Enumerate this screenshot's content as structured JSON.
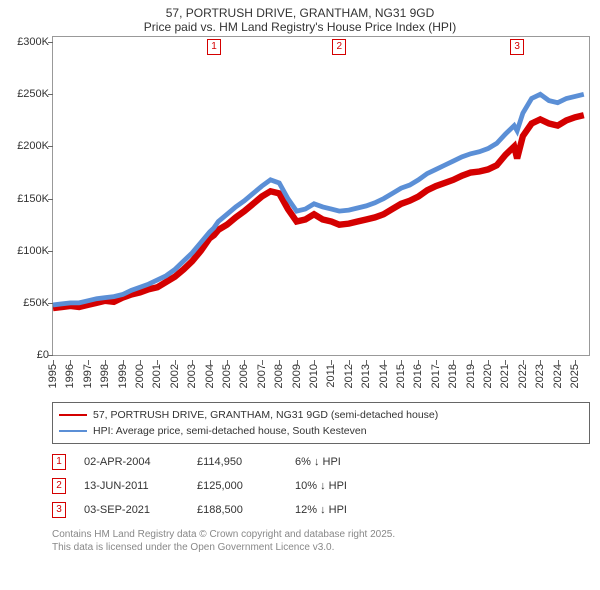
{
  "title_line1": "57, PORTRUSH DRIVE, GRANTHAM, NG31 9GD",
  "title_line2": "Price paid vs. HM Land Registry's House Price Index (HPI)",
  "chart": {
    "type": "line",
    "background_color": "#ffffff",
    "border_color": "#999999",
    "x_axis": {
      "min": 1995,
      "max": 2025.8,
      "ticks": [
        1995,
        1996,
        1997,
        1998,
        1999,
        2000,
        2001,
        2002,
        2003,
        2004,
        2005,
        2006,
        2007,
        2008,
        2009,
        2010,
        2011,
        2012,
        2013,
        2014,
        2015,
        2016,
        2017,
        2018,
        2019,
        2020,
        2021,
        2022,
        2023,
        2024,
        2025
      ],
      "label_fontsize": 11,
      "label_color": "#333333",
      "label_rotation": -90
    },
    "y_axis": {
      "min": 0,
      "max": 305000,
      "ticks": [
        {
          "v": 0,
          "label": "£0"
        },
        {
          "v": 50000,
          "label": "£50K"
        },
        {
          "v": 100000,
          "label": "£100K"
        },
        {
          "v": 150000,
          "label": "£150K"
        },
        {
          "v": 200000,
          "label": "£200K"
        },
        {
          "v": 250000,
          "label": "£250K"
        },
        {
          "v": 300000,
          "label": "£300K"
        }
      ],
      "label_fontsize": 11,
      "label_color": "#333333"
    },
    "series": [
      {
        "name": "price-paid",
        "label": "57, PORTRUSH DRIVE, GRANTHAM, NG31 9GD (semi-detached house)",
        "color": "#d40000",
        "line_width": 2,
        "data": [
          [
            1995.0,
            45000
          ],
          [
            1995.5,
            46000
          ],
          [
            1996.0,
            47000
          ],
          [
            1996.5,
            46000
          ],
          [
            1997.0,
            48000
          ],
          [
            1997.5,
            50000
          ],
          [
            1998.0,
            52000
          ],
          [
            1998.5,
            51000
          ],
          [
            1999.0,
            55000
          ],
          [
            1999.5,
            58000
          ],
          [
            2000.0,
            60000
          ],
          [
            2000.5,
            63000
          ],
          [
            2001.0,
            65000
          ],
          [
            2001.5,
            70000
          ],
          [
            2002.0,
            75000
          ],
          [
            2002.5,
            82000
          ],
          [
            2003.0,
            90000
          ],
          [
            2003.5,
            100000
          ],
          [
            2004.0,
            112000
          ],
          [
            2004.25,
            114950
          ],
          [
            2004.5,
            120000
          ],
          [
            2005.0,
            125000
          ],
          [
            2005.5,
            132000
          ],
          [
            2006.0,
            138000
          ],
          [
            2006.5,
            145000
          ],
          [
            2007.0,
            152000
          ],
          [
            2007.5,
            157000
          ],
          [
            2008.0,
            155000
          ],
          [
            2008.5,
            140000
          ],
          [
            2009.0,
            128000
          ],
          [
            2009.5,
            130000
          ],
          [
            2010.0,
            135000
          ],
          [
            2010.5,
            130000
          ],
          [
            2011.0,
            128000
          ],
          [
            2011.45,
            125000
          ],
          [
            2012.0,
            126000
          ],
          [
            2012.5,
            128000
          ],
          [
            2013.0,
            130000
          ],
          [
            2013.5,
            132000
          ],
          [
            2014.0,
            135000
          ],
          [
            2014.5,
            140000
          ],
          [
            2015.0,
            145000
          ],
          [
            2015.5,
            148000
          ],
          [
            2016.0,
            152000
          ],
          [
            2016.5,
            158000
          ],
          [
            2017.0,
            162000
          ],
          [
            2017.5,
            165000
          ],
          [
            2018.0,
            168000
          ],
          [
            2018.5,
            172000
          ],
          [
            2019.0,
            175000
          ],
          [
            2019.5,
            176000
          ],
          [
            2020.0,
            178000
          ],
          [
            2020.5,
            182000
          ],
          [
            2021.0,
            192000
          ],
          [
            2021.5,
            200000
          ],
          [
            2021.67,
            188500
          ],
          [
            2022.0,
            210000
          ],
          [
            2022.5,
            222000
          ],
          [
            2023.0,
            226000
          ],
          [
            2023.5,
            222000
          ],
          [
            2024.0,
            220000
          ],
          [
            2024.5,
            225000
          ],
          [
            2025.0,
            228000
          ],
          [
            2025.5,
            230000
          ]
        ]
      },
      {
        "name": "hpi",
        "label": "HPI: Average price, semi-detached house, South Kesteven",
        "color": "#5b8fd6",
        "line_width": 1.5,
        "data": [
          [
            1995.0,
            48000
          ],
          [
            1995.5,
            49000
          ],
          [
            1996.0,
            50000
          ],
          [
            1996.5,
            50000
          ],
          [
            1997.0,
            52000
          ],
          [
            1997.5,
            54000
          ],
          [
            1998.0,
            55000
          ],
          [
            1998.5,
            56000
          ],
          [
            1999.0,
            58000
          ],
          [
            1999.5,
            62000
          ],
          [
            2000.0,
            65000
          ],
          [
            2000.5,
            68000
          ],
          [
            2001.0,
            72000
          ],
          [
            2001.5,
            76000
          ],
          [
            2002.0,
            82000
          ],
          [
            2002.5,
            90000
          ],
          [
            2003.0,
            98000
          ],
          [
            2003.5,
            108000
          ],
          [
            2004.0,
            118000
          ],
          [
            2004.25,
            122000
          ],
          [
            2004.5,
            128000
          ],
          [
            2005.0,
            135000
          ],
          [
            2005.5,
            142000
          ],
          [
            2006.0,
            148000
          ],
          [
            2006.5,
            155000
          ],
          [
            2007.0,
            162000
          ],
          [
            2007.5,
            168000
          ],
          [
            2008.0,
            165000
          ],
          [
            2008.5,
            150000
          ],
          [
            2009.0,
            138000
          ],
          [
            2009.5,
            140000
          ],
          [
            2010.0,
            145000
          ],
          [
            2010.5,
            142000
          ],
          [
            2011.0,
            140000
          ],
          [
            2011.45,
            138000
          ],
          [
            2012.0,
            139000
          ],
          [
            2012.5,
            141000
          ],
          [
            2013.0,
            143000
          ],
          [
            2013.5,
            146000
          ],
          [
            2014.0,
            150000
          ],
          [
            2014.5,
            155000
          ],
          [
            2015.0,
            160000
          ],
          [
            2015.5,
            163000
          ],
          [
            2016.0,
            168000
          ],
          [
            2016.5,
            174000
          ],
          [
            2017.0,
            178000
          ],
          [
            2017.5,
            182000
          ],
          [
            2018.0,
            186000
          ],
          [
            2018.5,
            190000
          ],
          [
            2019.0,
            193000
          ],
          [
            2019.5,
            195000
          ],
          [
            2020.0,
            198000
          ],
          [
            2020.5,
            203000
          ],
          [
            2021.0,
            212000
          ],
          [
            2021.5,
            220000
          ],
          [
            2021.67,
            215000
          ],
          [
            2022.0,
            232000
          ],
          [
            2022.5,
            246000
          ],
          [
            2023.0,
            250000
          ],
          [
            2023.5,
            244000
          ],
          [
            2024.0,
            242000
          ],
          [
            2024.5,
            246000
          ],
          [
            2025.0,
            248000
          ],
          [
            2025.5,
            250000
          ]
        ]
      }
    ],
    "markers": [
      {
        "n": "1",
        "x": 2004.25,
        "color": "#d40000"
      },
      {
        "n": "2",
        "x": 2011.45,
        "color": "#d40000"
      },
      {
        "n": "3",
        "x": 2021.67,
        "color": "#d40000"
      }
    ]
  },
  "legend": {
    "border_color": "#666666",
    "fontsize": 10.5
  },
  "sales": [
    {
      "n": "1",
      "date": "02-APR-2004",
      "price": "£114,950",
      "pct": "6% ↓ HPI",
      "color": "#d40000"
    },
    {
      "n": "2",
      "date": "13-JUN-2011",
      "price": "£125,000",
      "pct": "10% ↓ HPI",
      "color": "#d40000"
    },
    {
      "n": "3",
      "date": "03-SEP-2021",
      "price": "£188,500",
      "pct": "12% ↓ HPI",
      "color": "#d40000"
    }
  ],
  "footer_line1": "Contains HM Land Registry data © Crown copyright and database right 2025.",
  "footer_line2": "This data is licensed under the Open Government Licence v3.0."
}
